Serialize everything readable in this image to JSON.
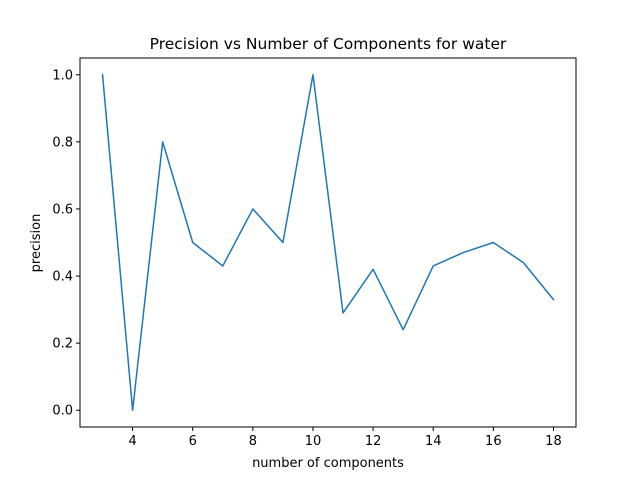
{
  "chart_data": {
    "type": "line",
    "title": "Precision vs Number of Components for water",
    "xlabel": "number of components",
    "ylabel": "precision",
    "x": [
      3,
      4,
      5,
      6,
      7,
      8,
      9,
      10,
      11,
      12,
      13,
      14,
      15,
      16,
      17,
      18
    ],
    "series": [
      {
        "values": [
          1.0,
          0.0,
          0.8,
          0.5,
          0.43,
          0.6,
          0.5,
          1.0,
          0.29,
          0.42,
          0.24,
          0.43,
          0.47,
          0.5,
          0.44,
          0.33
        ],
        "color": "#1f77b4"
      }
    ],
    "xlim": [
      2.25,
      18.75
    ],
    "ylim": [
      -0.05,
      1.05
    ],
    "xticks": [
      4,
      6,
      8,
      10,
      12,
      14,
      16,
      18
    ],
    "xtick_labels": [
      "4",
      "6",
      "8",
      "10",
      "12",
      "14",
      "16",
      "18"
    ],
    "yticks": [
      0.0,
      0.2,
      0.4,
      0.6,
      0.8,
      1.0
    ],
    "ytick_labels": [
      "0.0",
      "0.2",
      "0.4",
      "0.6",
      "0.8",
      "1.0"
    ],
    "grid": false,
    "legend": "none"
  }
}
